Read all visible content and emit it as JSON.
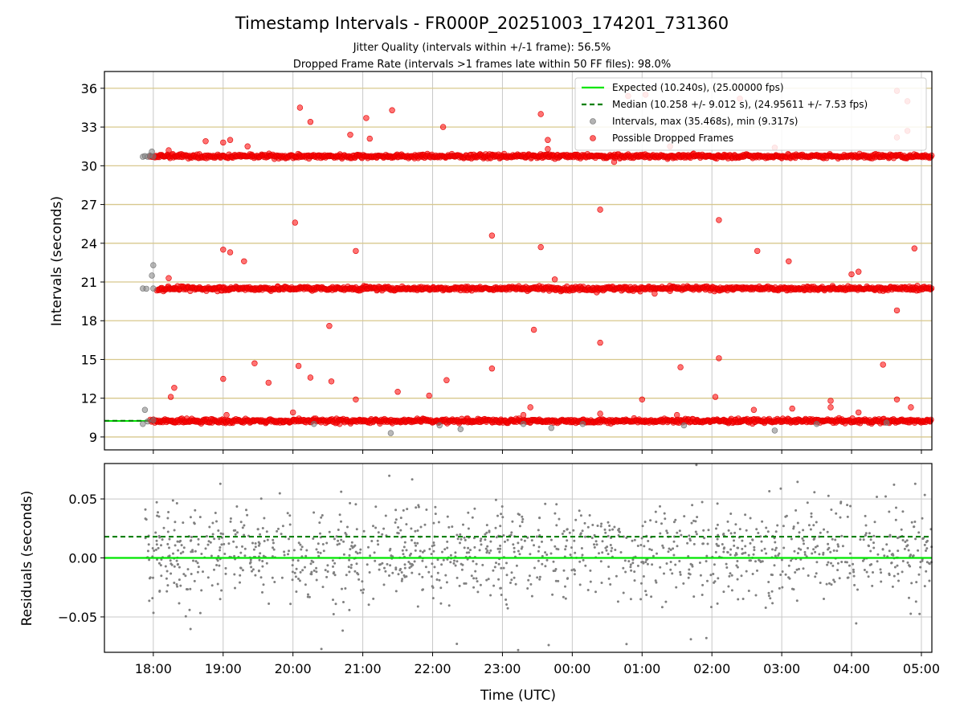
{
  "chart_data": {
    "title": "Timestamp Intervals - FR000P_20251003_174201_731360",
    "subtitles": [
      "Jitter Quality (intervals within +/-1 frame): 56.5%",
      "Dropped Frame Rate (intervals >1 frames late within 50 FF files): 98.0%"
    ],
    "xlabel": "Time (UTC)",
    "x_tick_labels": [
      "18:00",
      "19:00",
      "20:00",
      "21:00",
      "22:00",
      "23:00",
      "00:00",
      "01:00",
      "02:00",
      "03:00",
      "04:00",
      "05:00"
    ],
    "x_range_hours": [
      17.3,
      29.15
    ],
    "panels": [
      {
        "type": "scatter",
        "ylabel": "Intervals (seconds)",
        "ylim": [
          8.0,
          37.3
        ],
        "y_ticks": [
          9,
          12,
          15,
          18,
          21,
          24,
          27,
          30,
          33,
          36
        ],
        "grid": "horizontal-gold-and-vertical",
        "legend_position": "top-right",
        "legend": [
          {
            "label": "Expected (10.240s), (25.00000 fps)",
            "kind": "line",
            "color": "#00e600"
          },
          {
            "label": "Median (10.258 +/- 9.012 s), (24.95611 +/- 7.53 fps)",
            "kind": "dashed",
            "color": "#008000"
          },
          {
            "label": "Intervals, max (35.468s), min (9.317s)",
            "kind": "dot",
            "color": "#808080"
          },
          {
            "label": "Possible Dropped Frames",
            "kind": "dot",
            "color": "#ff0000"
          }
        ],
        "expected_interval": 10.24,
        "median_interval": 10.258,
        "interval_max": 35.468,
        "interval_min": 9.317,
        "bands": [
          {
            "name": "1-interval",
            "y": 10.24,
            "spread": 0.08,
            "color": "red",
            "start_hour": 17.95
          },
          {
            "name": "2-interval",
            "y": 20.5,
            "spread": 0.08,
            "color": "red",
            "start_hour": 18.05
          },
          {
            "name": "3-interval",
            "y": 30.74,
            "spread": 0.08,
            "color": "red",
            "start_hour": 17.95
          }
        ],
        "gray_points": [
          [
            17.85,
            30.7
          ],
          [
            17.88,
            30.75
          ],
          [
            17.92,
            30.7
          ],
          [
            17.95,
            30.8
          ],
          [
            17.98,
            31.1
          ],
          [
            18.0,
            30.72
          ],
          [
            17.85,
            20.5
          ],
          [
            17.9,
            20.48
          ],
          [
            17.98,
            21.5
          ],
          [
            18.0,
            22.3
          ],
          [
            18.0,
            20.5
          ],
          [
            17.85,
            10.0
          ],
          [
            17.88,
            11.1
          ],
          [
            17.92,
            10.2
          ],
          [
            18.0,
            10.3
          ],
          [
            20.3,
            10.0
          ],
          [
            21.4,
            9.3
          ],
          [
            22.4,
            9.6
          ],
          [
            22.1,
            9.9
          ],
          [
            23.3,
            10.0
          ],
          [
            23.7,
            9.7
          ],
          [
            24.15,
            10.0
          ],
          [
            25.6,
            9.9
          ],
          [
            26.9,
            9.5
          ],
          [
            27.5,
            10.0
          ],
          [
            28.5,
            10.1
          ]
        ],
        "red_outliers": [
          [
            18.22,
            31.2
          ],
          [
            18.75,
            31.9
          ],
          [
            19.0,
            31.8
          ],
          [
            19.1,
            32.0
          ],
          [
            19.35,
            31.5
          ],
          [
            20.1,
            34.5
          ],
          [
            20.25,
            33.4
          ],
          [
            20.82,
            32.4
          ],
          [
            21.05,
            33.7
          ],
          [
            21.1,
            32.1
          ],
          [
            21.42,
            34.3
          ],
          [
            22.15,
            33.0
          ],
          [
            23.55,
            34.0
          ],
          [
            23.65,
            32.0
          ],
          [
            23.65,
            31.3
          ],
          [
            24.6,
            30.3
          ],
          [
            25.4,
            31.5
          ],
          [
            26.9,
            31.4
          ],
          [
            28.65,
            32.2
          ],
          [
            28.8,
            32.7
          ],
          [
            24.8,
            35.4
          ],
          [
            25.05,
            35.5
          ],
          [
            26.4,
            35.2
          ],
          [
            28.65,
            35.8
          ],
          [
            28.8,
            35.0
          ],
          [
            19.0,
            23.5
          ],
          [
            19.1,
            23.3
          ],
          [
            19.3,
            22.6
          ],
          [
            18.22,
            21.3
          ],
          [
            20.03,
            25.6
          ],
          [
            20.9,
            23.4
          ],
          [
            22.85,
            24.6
          ],
          [
            23.55,
            23.7
          ],
          [
            23.75,
            21.2
          ],
          [
            24.4,
            26.6
          ],
          [
            25.18,
            20.1
          ],
          [
            26.1,
            25.8
          ],
          [
            26.65,
            23.4
          ],
          [
            27.1,
            22.6
          ],
          [
            28.0,
            21.6
          ],
          [
            28.1,
            21.8
          ],
          [
            28.65,
            18.8
          ],
          [
            28.9,
            23.6
          ],
          [
            24.35,
            20.2
          ],
          [
            25.4,
            20.3
          ],
          [
            18.3,
            12.8
          ],
          [
            18.25,
            12.1
          ],
          [
            19.0,
            13.5
          ],
          [
            19.45,
            14.7
          ],
          [
            19.65,
            13.2
          ],
          [
            20.08,
            14.5
          ],
          [
            20.25,
            13.6
          ],
          [
            20.55,
            13.3
          ],
          [
            20.52,
            17.6
          ],
          [
            20.9,
            11.9
          ],
          [
            21.5,
            12.5
          ],
          [
            21.95,
            12.2
          ],
          [
            22.2,
            13.4
          ],
          [
            22.85,
            14.3
          ],
          [
            23.4,
            11.3
          ],
          [
            23.45,
            17.3
          ],
          [
            24.4,
            16.3
          ],
          [
            25.0,
            11.9
          ],
          [
            25.55,
            14.4
          ],
          [
            26.1,
            15.1
          ],
          [
            26.05,
            12.1
          ],
          [
            27.15,
            11.2
          ],
          [
            27.7,
            11.8
          ],
          [
            28.45,
            14.6
          ],
          [
            28.65,
            11.9
          ],
          [
            28.85,
            11.3
          ],
          [
            26.6,
            11.1
          ],
          [
            20.0,
            10.9
          ],
          [
            19.05,
            10.7
          ],
          [
            23.3,
            10.7
          ],
          [
            24.4,
            10.8
          ],
          [
            25.5,
            10.7
          ],
          [
            27.7,
            11.3
          ],
          [
            28.1,
            10.9
          ]
        ]
      },
      {
        "type": "scatter",
        "ylabel": "Residuals (seconds)",
        "ylim": [
          -0.08,
          0.08
        ],
        "y_ticks": [
          -0.05,
          0.0,
          0.05
        ],
        "y_tick_labels": [
          "−0.05",
          "0.00",
          "0.05"
        ],
        "grid": "both",
        "expected_residual": 0.0,
        "median_residual": 0.018,
        "residual_center": 0.005,
        "residual_spread": 0.02,
        "point_color": "#808080"
      }
    ]
  }
}
